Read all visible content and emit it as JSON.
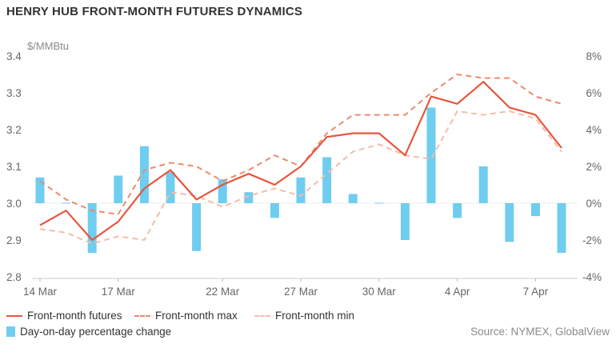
{
  "title": "HENRY HUB FRONT-MONTH FUTURES DYNAMICS",
  "unit_label": "$/MMBtu",
  "source": "Source: NYMEX, GlobalView",
  "colors": {
    "futures": "#e8553e",
    "max": "#ec8a6e",
    "min": "#f4bca8",
    "bars": "#6fcdf0",
    "axis_text": "#666666",
    "grid": "#dddddd"
  },
  "legend": {
    "futures": "Front-month futures",
    "max": "Front-month max",
    "min": "Front-month min",
    "change": "Day-on-day percentage change"
  },
  "chart_data": {
    "type": "line",
    "title": "HENRY HUB FRONT-MONTH FUTURES DYNAMICS",
    "x_tick_labels": [
      "14 Mar",
      "17 Mar",
      "22 Mar",
      "27 Mar",
      "30 Mar",
      "4 Apr",
      "7 Apr"
    ],
    "x_tick_positions": [
      0,
      3,
      7,
      10,
      13,
      16,
      19
    ],
    "y_left": {
      "label": "$/MMBtu",
      "range": [
        2.8,
        3.4
      ],
      "ticks": [
        "2.8",
        "2.9",
        "3.0",
        "3.1",
        "3.2",
        "3.3",
        "3.4"
      ]
    },
    "y_right": {
      "range": [
        -4,
        8
      ],
      "ticks": [
        "-4%",
        "-2%",
        "0%",
        "2%",
        "4%",
        "6%",
        "8%"
      ]
    },
    "grid": false,
    "legend_position": "bottom",
    "series": [
      {
        "name": "Front-month futures",
        "style": "solid",
        "axis": "left",
        "values": [
          2.94,
          2.98,
          2.9,
          2.95,
          3.04,
          3.09,
          3.01,
          3.05,
          3.08,
          3.05,
          3.1,
          3.18,
          3.19,
          3.19,
          3.13,
          3.29,
          3.27,
          3.33,
          3.26,
          3.24,
          3.15
        ]
      },
      {
        "name": "Front-month max",
        "style": "dashed",
        "axis": "left",
        "values": [
          3.06,
          3.01,
          2.98,
          2.97,
          3.09,
          3.11,
          3.1,
          3.06,
          3.09,
          3.13,
          3.1,
          3.19,
          3.24,
          3.24,
          3.24,
          3.3,
          3.35,
          3.34,
          3.34,
          3.29,
          3.27
        ]
      },
      {
        "name": "Front-month min",
        "style": "dashed",
        "axis": "left",
        "values": [
          2.93,
          2.92,
          2.89,
          2.91,
          2.9,
          3.03,
          3.02,
          2.99,
          3.02,
          3.04,
          3.02,
          3.08,
          3.14,
          3.16,
          3.13,
          3.12,
          3.25,
          3.24,
          3.25,
          3.23,
          3.14
        ]
      },
      {
        "name": "Day-on-day percentage change",
        "type": "bar",
        "axis": "right",
        "values": [
          1.4,
          0.0,
          -2.7,
          1.5,
          3.1,
          1.7,
          -2.6,
          1.3,
          0.6,
          -0.8,
          1.4,
          2.5,
          0.5,
          0.0,
          -2.0,
          5.2,
          -0.8,
          2.0,
          -2.1,
          -0.7,
          -2.7
        ]
      }
    ]
  }
}
